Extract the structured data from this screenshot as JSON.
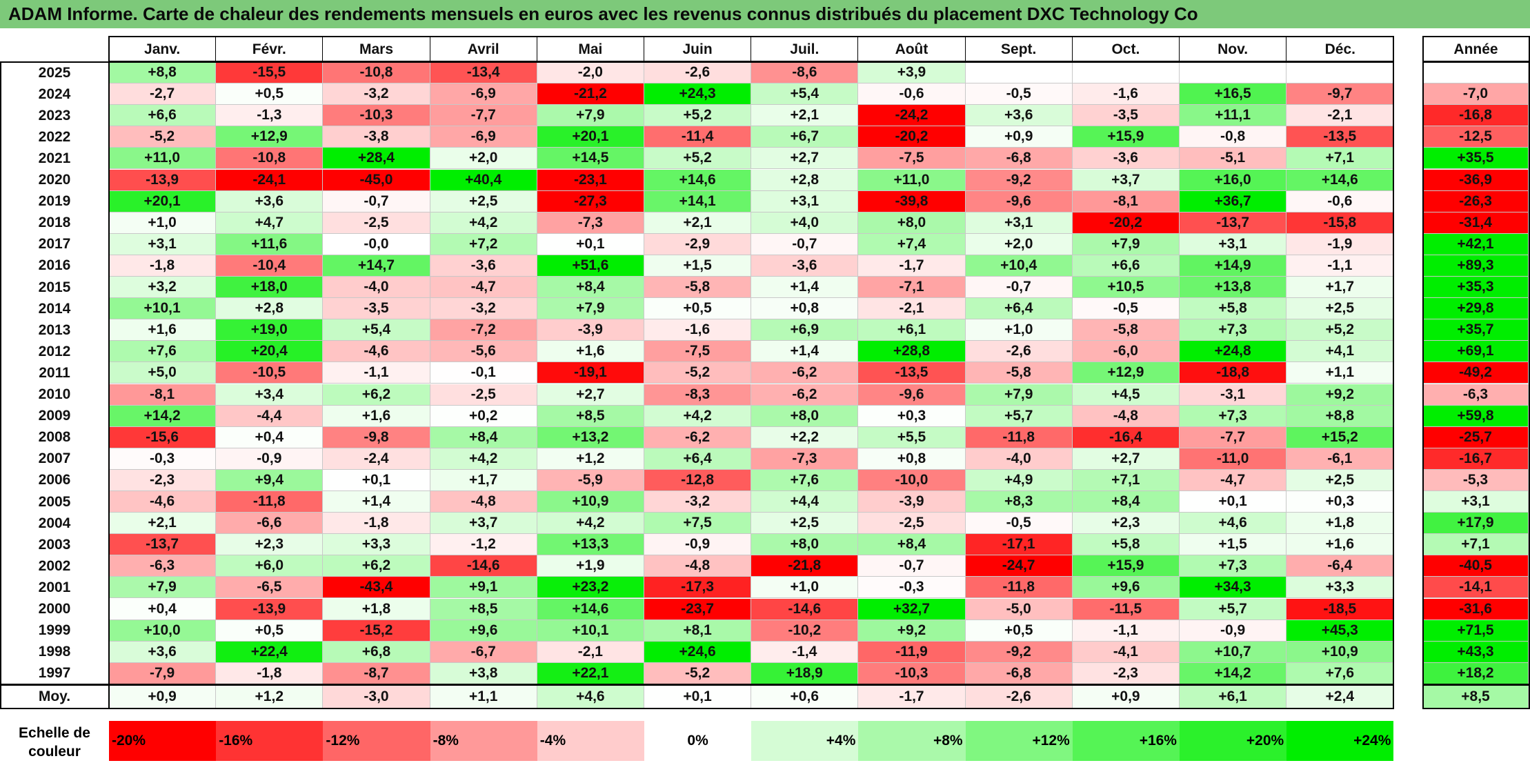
{
  "title": "ADAM Informe. Carte de chaleur des rendements mensuels en euros avec les revenus connus distribués du placement DXC Technology Co",
  "chart_data": {
    "type": "heatmap",
    "months": [
      "Janv.",
      "Févr.",
      "Mars",
      "Avril",
      "Mai",
      "Juin",
      "Juil.",
      "Août",
      "Sept.",
      "Oct.",
      "Nov.",
      "Déc."
    ],
    "year_header": "Année",
    "avg_label": "Moy.",
    "scale_title": [
      "Echelle de",
      "couleur"
    ],
    "rows": [
      {
        "year": "2025",
        "values": [
          "+8,8",
          "-15,5",
          "-10,8",
          "-13,4",
          "-2,0",
          "-2,6",
          "-8,6",
          "+3,9",
          "",
          "",
          "",
          ""
        ],
        "annual": ""
      },
      {
        "year": "2024",
        "values": [
          "-2,7",
          "+0,5",
          "-3,2",
          "-6,9",
          "-21,2",
          "+24,3",
          "+5,4",
          "-0,6",
          "-0,5",
          "-1,6",
          "+16,5",
          "-9,7"
        ],
        "annual": "-7,0"
      },
      {
        "year": "2023",
        "values": [
          "+6,6",
          "-1,3",
          "-10,3",
          "-7,7",
          "+7,9",
          "+5,2",
          "+2,1",
          "-24,2",
          "+3,6",
          "-3,5",
          "+11,1",
          "-2,1"
        ],
        "annual": "-16,8"
      },
      {
        "year": "2022",
        "values": [
          "-5,2",
          "+12,9",
          "-3,8",
          "-6,9",
          "+20,1",
          "-11,4",
          "+6,7",
          "-20,2",
          "+0,9",
          "+15,9",
          "-0,8",
          "-13,5"
        ],
        "annual": "-12,5"
      },
      {
        "year": "2021",
        "values": [
          "+11,0",
          "-10,8",
          "+28,4",
          "+2,0",
          "+14,5",
          "+5,2",
          "+2,7",
          "-7,5",
          "-6,8",
          "-3,6",
          "-5,1",
          "+7,1"
        ],
        "annual": "+35,5"
      },
      {
        "year": "2020",
        "values": [
          "-13,9",
          "-24,1",
          "-45,0",
          "+40,4",
          "-23,1",
          "+14,6",
          "+2,8",
          "+11,0",
          "-9,2",
          "+3,7",
          "+16,0",
          "+14,6"
        ],
        "annual": "-36,9"
      },
      {
        "year": "2019",
        "values": [
          "+20,1",
          "+3,6",
          "-0,7",
          "+2,5",
          "-27,3",
          "+14,1",
          "+3,1",
          "-39,8",
          "-9,6",
          "-8,1",
          "+36,7",
          "-0,6"
        ],
        "annual": "-26,3"
      },
      {
        "year": "2018",
        "values": [
          "+1,0",
          "+4,7",
          "-2,5",
          "+4,2",
          "-7,3",
          "+2,1",
          "+4,0",
          "+8,0",
          "+3,1",
          "-20,2",
          "-13,7",
          "-15,8"
        ],
        "annual": "-31,4"
      },
      {
        "year": "2017",
        "values": [
          "+3,1",
          "+11,6",
          "-0,0",
          "+7,2",
          "+0,1",
          "-2,9",
          "-0,7",
          "+7,4",
          "+2,0",
          "+7,9",
          "+3,1",
          "-1,9"
        ],
        "annual": "+42,1"
      },
      {
        "year": "2016",
        "values": [
          "-1,8",
          "-10,4",
          "+14,7",
          "-3,6",
          "+51,6",
          "+1,5",
          "-3,6",
          "-1,7",
          "+10,4",
          "+6,6",
          "+14,9",
          "-1,1"
        ],
        "annual": "+89,3"
      },
      {
        "year": "2015",
        "values": [
          "+3,2",
          "+18,0",
          "-4,0",
          "-4,7",
          "+8,4",
          "-5,8",
          "+1,4",
          "-7,1",
          "-0,7",
          "+10,5",
          "+13,8",
          "+1,7"
        ],
        "annual": "+35,3"
      },
      {
        "year": "2014",
        "values": [
          "+10,1",
          "+2,8",
          "-3,5",
          "-3,2",
          "+7,9",
          "+0,5",
          "+0,8",
          "-2,1",
          "+6,4",
          "-0,5",
          "+5,8",
          "+2,5"
        ],
        "annual": "+29,8"
      },
      {
        "year": "2013",
        "values": [
          "+1,6",
          "+19,0",
          "+5,4",
          "-7,2",
          "-3,9",
          "-1,6",
          "+6,9",
          "+6,1",
          "+1,0",
          "-5,8",
          "+7,3",
          "+5,2"
        ],
        "annual": "+35,7"
      },
      {
        "year": "2012",
        "values": [
          "+7,6",
          "+20,4",
          "-4,6",
          "-5,6",
          "+1,6",
          "-7,5",
          "+1,4",
          "+28,8",
          "-2,6",
          "-6,0",
          "+24,8",
          "+4,1"
        ],
        "annual": "+69,1"
      },
      {
        "year": "2011",
        "values": [
          "+5,0",
          "-10,5",
          "-1,1",
          "-0,1",
          "-19,1",
          "-5,2",
          "-6,2",
          "-13,5",
          "-5,8",
          "+12,9",
          "-18,8",
          "+1,1"
        ],
        "annual": "-49,2"
      },
      {
        "year": "2010",
        "values": [
          "-8,1",
          "+3,4",
          "+6,2",
          "-2,5",
          "+2,7",
          "-8,3",
          "-6,2",
          "-9,6",
          "+7,9",
          "+4,5",
          "-3,1",
          "+9,2"
        ],
        "annual": "-6,3"
      },
      {
        "year": "2009",
        "values": [
          "+14,2",
          "-4,4",
          "+1,6",
          "+0,2",
          "+8,5",
          "+4,2",
          "+8,0",
          "+0,3",
          "+5,7",
          "-4,8",
          "+7,3",
          "+8,8"
        ],
        "annual": "+59,8"
      },
      {
        "year": "2008",
        "values": [
          "-15,6",
          "+0,4",
          "-9,8",
          "+8,4",
          "+13,2",
          "-6,2",
          "+2,2",
          "+5,5",
          "-11,8",
          "-16,4",
          "-7,7",
          "+15,2"
        ],
        "annual": "-25,7"
      },
      {
        "year": "2007",
        "values": [
          "-0,3",
          "-0,9",
          "-2,4",
          "+4,2",
          "+1,2",
          "+6,4",
          "-7,3",
          "+0,8",
          "-4,0",
          "+2,7",
          "-11,0",
          "-6,1"
        ],
        "annual": "-16,7"
      },
      {
        "year": "2006",
        "values": [
          "-2,3",
          "+9,4",
          "+0,1",
          "+1,7",
          "-5,9",
          "-12,8",
          "+7,6",
          "-10,0",
          "+4,9",
          "+7,1",
          "-4,7",
          "+2,5"
        ],
        "annual": "-5,3"
      },
      {
        "year": "2005",
        "values": [
          "-4,6",
          "-11,8",
          "+1,4",
          "-4,8",
          "+10,9",
          "-3,2",
          "+4,4",
          "-3,9",
          "+8,3",
          "+8,4",
          "+0,1",
          "+0,3"
        ],
        "annual": "+3,1"
      },
      {
        "year": "2004",
        "values": [
          "+2,1",
          "-6,6",
          "-1,8",
          "+3,7",
          "+4,2",
          "+7,5",
          "+2,5",
          "-2,5",
          "-0,5",
          "+2,3",
          "+4,6",
          "+1,8"
        ],
        "annual": "+17,9"
      },
      {
        "year": "2003",
        "values": [
          "-13,7",
          "+2,3",
          "+3,3",
          "-1,2",
          "+13,3",
          "-0,9",
          "+8,0",
          "+8,4",
          "-17,1",
          "+5,8",
          "+1,5",
          "+1,6"
        ],
        "annual": "+7,1"
      },
      {
        "year": "2002",
        "values": [
          "-6,3",
          "+6,0",
          "+6,2",
          "-14,6",
          "+1,9",
          "-4,8",
          "-21,8",
          "-0,7",
          "-24,7",
          "+15,9",
          "+7,3",
          "-6,4"
        ],
        "annual": "-40,5"
      },
      {
        "year": "2001",
        "values": [
          "+7,9",
          "-6,5",
          "-43,4",
          "+9,1",
          "+23,2",
          "-17,3",
          "+1,0",
          "-0,3",
          "-11,8",
          "+9,6",
          "+34,3",
          "+3,3"
        ],
        "annual": "-14,1"
      },
      {
        "year": "2000",
        "values": [
          "+0,4",
          "-13,9",
          "+1,8",
          "+8,5",
          "+14,6",
          "-23,7",
          "-14,6",
          "+32,7",
          "-5,0",
          "-11,5",
          "+5,7",
          "-18,5"
        ],
        "annual": "-31,6"
      },
      {
        "year": "1999",
        "values": [
          "+10,0",
          "+0,5",
          "-15,2",
          "+9,6",
          "+10,1",
          "+8,1",
          "-10,2",
          "+9,2",
          "+0,5",
          "-1,1",
          "-0,9",
          "+45,3"
        ],
        "annual": "+71,5"
      },
      {
        "year": "1998",
        "values": [
          "+3,6",
          "+22,4",
          "+6,8",
          "-6,7",
          "-2,1",
          "+24,6",
          "-1,4",
          "-11,9",
          "-9,2",
          "-4,1",
          "+10,7",
          "+10,9"
        ],
        "annual": "+43,3"
      },
      {
        "year": "1997",
        "values": [
          "-7,9",
          "-1,8",
          "-8,7",
          "+3,8",
          "+22,1",
          "-5,2",
          "+18,9",
          "-10,3",
          "-6,8",
          "-2,3",
          "+14,2",
          "+7,6"
        ],
        "annual": "+18,2"
      }
    ],
    "averages": [
      "+0,9",
      "+1,2",
      "-3,0",
      "+1,1",
      "+4,6",
      "+0,1",
      "+0,6",
      "-1,7",
      "-2,6",
      "+0,9",
      "+6,1",
      "+2,4"
    ],
    "average_annual": "+8,5",
    "scale": [
      {
        "label": "-20%",
        "value": -20,
        "align": "left"
      },
      {
        "label": "-16%",
        "value": -16,
        "align": "left"
      },
      {
        "label": "-12%",
        "value": -12,
        "align": "left"
      },
      {
        "label": "-8%",
        "value": -8,
        "align": "left"
      },
      {
        "label": "-4%",
        "value": -4,
        "align": "left"
      },
      {
        "label": "0%",
        "value": 0,
        "align": "center"
      },
      {
        "label": "+4%",
        "value": 4,
        "align": "right"
      },
      {
        "label": "+8%",
        "value": 8,
        "align": "right"
      },
      {
        "label": "+12%",
        "value": 12,
        "align": "right"
      },
      {
        "label": "+16%",
        "value": 16,
        "align": "right"
      },
      {
        "label": "+20%",
        "value": 20,
        "align": "right"
      },
      {
        "label": "+24%",
        "value": 24,
        "align": "right"
      }
    ],
    "colors": {
      "title_bar": "#7dc97a",
      "max_negative": "#ff0000",
      "neutral": "#ffffff",
      "max_positive": "#00ee00"
    }
  }
}
